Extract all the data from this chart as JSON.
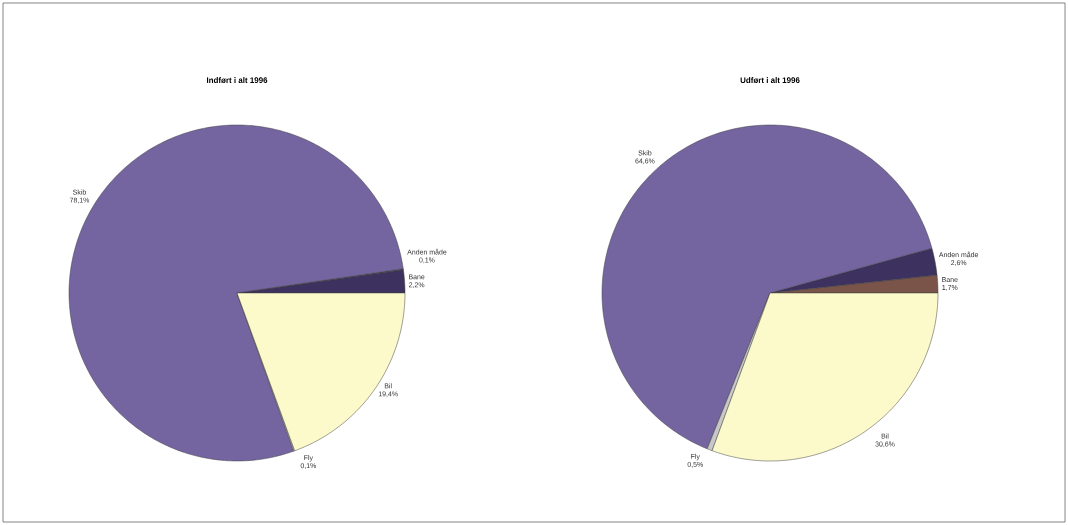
{
  "chart_data": [
    {
      "type": "pie",
      "title": "Indført i alt 1996",
      "categories": [
        "Bane",
        "Anden måde",
        "Skib",
        "Fly",
        "Bil"
      ],
      "values": [
        2.2,
        0.1,
        78.1,
        0.1,
        19.4
      ],
      "colors": [
        "#3d3160",
        "#3d3160",
        "#7464a0",
        "#c8c8c8",
        "#fcfacb"
      ],
      "value_labels": [
        "2,2%",
        "0,1%",
        "78,1%",
        "0,1%",
        "19,4%"
      ]
    },
    {
      "type": "pie",
      "title": "Udført i alt 1996",
      "categories": [
        "Bane",
        "Anden måde",
        "Skib",
        "Fly",
        "Bil"
      ],
      "values": [
        1.7,
        2.6,
        64.6,
        0.5,
        30.6
      ],
      "colors": [
        "#7a5448",
        "#3d3160",
        "#7464a0",
        "#c8c8c8",
        "#fcfacb"
      ],
      "value_labels": [
        "1,7%",
        "2,6%",
        "64,6%",
        "0,5%",
        "30,6%"
      ]
    }
  ]
}
